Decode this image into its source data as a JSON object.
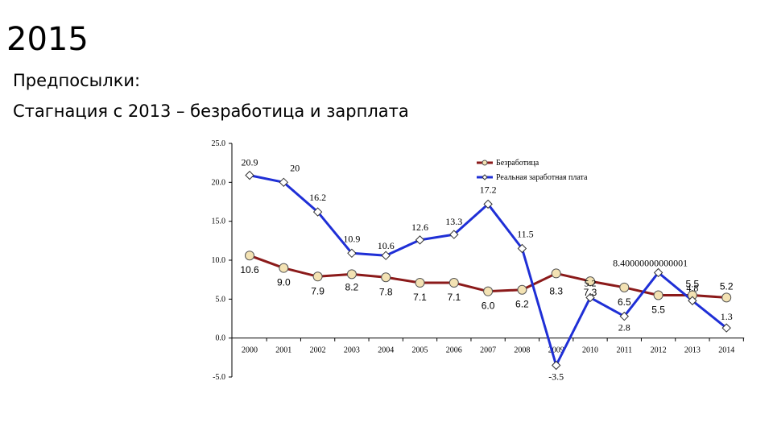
{
  "slide": {
    "title": "2015",
    "bullets": [
      "Предпосылки:",
      "Стагнация с 2013 – безработица и зарплата"
    ]
  },
  "chart_data": {
    "type": "line",
    "x": [
      "2000",
      "2001",
      "2002",
      "2003",
      "2004",
      "2005",
      "2006",
      "2007",
      "2008",
      "2009",
      "2010",
      "2011",
      "2012",
      "2013",
      "2014"
    ],
    "y_ticks": [
      "25.0",
      "20.0",
      "15.0",
      "10.0",
      "5.0",
      "0.0",
      "-5.0"
    ],
    "ylim": [
      -5,
      25
    ],
    "grid": false,
    "legend_position": "top-right",
    "colors": {
      "unemployment": "#8B1A1A",
      "wages": "#1F2FD6",
      "unemployment_marker": "#F3E2B3",
      "wages_marker": "#ffffff"
    },
    "series": [
      {
        "name": "Безработица",
        "values": [
          10.6,
          9.0,
          7.9,
          8.2,
          7.8,
          7.1,
          7.1,
          6.0,
          6.2,
          8.3,
          7.3,
          6.5,
          5.5,
          5.5,
          5.2
        ],
        "labels": [
          "10.6",
          "9.0",
          "7.9",
          "8.2",
          "7.8",
          "7.1",
          "7.1",
          "6.0",
          "6.2",
          "8.3",
          "7.3",
          "6.5",
          "5.5",
          "5.5",
          "5.2"
        ]
      },
      {
        "name": "Реальная заработная плата",
        "values": [
          20.9,
          20,
          16.2,
          10.9,
          10.6,
          12.6,
          13.3,
          17.2,
          11.5,
          -3.5,
          5.2,
          2.8,
          8.4,
          4.8,
          1.3
        ],
        "labels": [
          "20.9",
          "20",
          "16.2",
          "10.9",
          "10.6",
          "12.6",
          "13.3",
          "17.2",
          "11.5",
          "-3.5",
          "5.2",
          "2.8",
          "8.40000000000001",
          "4.8",
          "1.3"
        ]
      }
    ]
  }
}
